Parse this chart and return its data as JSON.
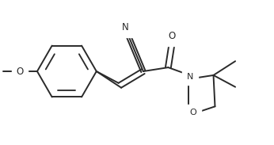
{
  "bg_color": "#ffffff",
  "line_color": "#2a2a2a",
  "line_width": 1.4,
  "font_size": 8.5,
  "figsize": [
    3.46,
    1.83
  ],
  "dpi": 100,
  "xlim": [
    0,
    346
  ],
  "ylim": [
    0,
    183
  ]
}
